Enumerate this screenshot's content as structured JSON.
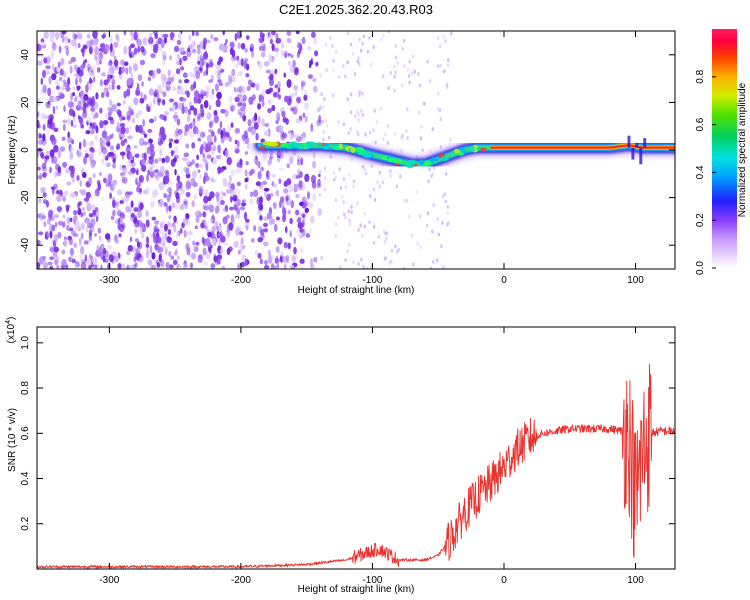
{
  "figure_title": "C2E1.2025.362.20.43.R03",
  "colors": {
    "snr_line": "#e8322e",
    "speck": "#7a2ee0",
    "track_core": "#ff1e1e"
  },
  "chart_data": [
    {
      "type": "heatmap",
      "panel": "spectrogram",
      "title": "C2E1.2025.362.20.43.R03",
      "xlabel": "Height of straight line (km)",
      "ylabel": "Frequency (Hz)",
      "xlim": [
        -355,
        130
      ],
      "ylim": [
        -50,
        50
      ],
      "x_ticks": [
        -300,
        -200,
        -100,
        0,
        100
      ],
      "y_ticks": [
        -40,
        -20,
        0,
        20,
        40
      ],
      "grid": false,
      "track": {
        "x": [
          -185,
          -160,
          -140,
          -120,
          -100,
          -85,
          -70,
          -60,
          -50,
          -40,
          -30,
          -20,
          -10,
          0,
          20,
          40,
          60,
          80,
          95,
          105,
          130
        ],
        "frequency": [
          2,
          2,
          2,
          1,
          -2,
          -4,
          -6,
          -6,
          -4,
          -2,
          0,
          1,
          1,
          1,
          1,
          1,
          1,
          1,
          2,
          1,
          1
        ]
      },
      "colorbar": {
        "label": "Normalized spectral amplitude",
        "range": [
          0,
          1
        ],
        "ticks": [
          0.0,
          0.2,
          0.4,
          0.6,
          0.8
        ],
        "tick_labels": [
          "0.0",
          "0.2",
          "0.4",
          "0.6",
          "0.8"
        ]
      }
    },
    {
      "type": "line",
      "panel": "snr",
      "xlabel": "Height of straight line (km)",
      "ylabel": "SNR (10 * v/v)",
      "multiplier_label": "(x10",
      "multiplier_exp": "4",
      "xlim": [
        -355,
        130
      ],
      "ylim": [
        0,
        1.07
      ],
      "x_ticks": [
        -300,
        -200,
        -100,
        0,
        100
      ],
      "y_ticks": [
        0.2,
        0.4,
        0.6,
        0.8,
        1.0
      ],
      "grid": false,
      "series": [
        {
          "name": "SNR",
          "x": [
            -355,
            -200,
            -150,
            -120,
            -105,
            -95,
            -80,
            -60,
            -50,
            -40,
            -30,
            -20,
            -10,
            0,
            10,
            20,
            30,
            40,
            50,
            60,
            70,
            80,
            90,
            95,
            100,
            105,
            110,
            120,
            130
          ],
          "values": [
            0.01,
            0.01,
            0.02,
            0.04,
            0.07,
            0.09,
            0.04,
            0.04,
            0.06,
            0.14,
            0.25,
            0.32,
            0.38,
            0.45,
            0.53,
            0.58,
            0.6,
            0.61,
            0.62,
            0.62,
            0.62,
            0.62,
            0.61,
            0.6,
            0.3,
            0.5,
            0.6,
            0.61,
            0.61
          ]
        }
      ]
    }
  ]
}
